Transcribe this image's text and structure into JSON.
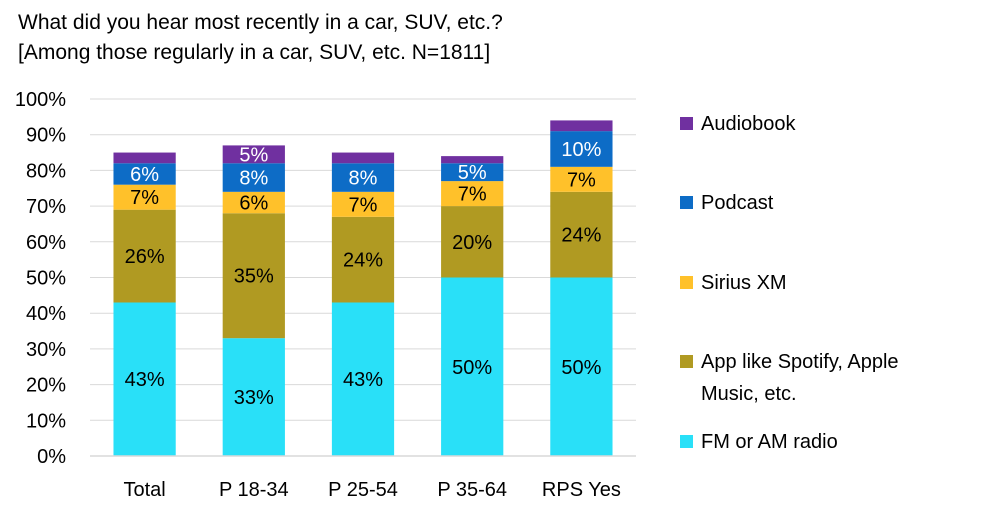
{
  "chart_data": {
    "type": "bar",
    "stacked": true,
    "title": "What did you hear most recently in a car, SUV, etc.?",
    "subtitle": "[Among those regularly in a car, SUV, etc. N=1811]",
    "categories": [
      "Total",
      "P 18-34",
      "P 25-54",
      "P 35-64",
      "RPS Yes"
    ],
    "ylim": [
      0,
      100
    ],
    "yticks": [
      "0%",
      "10%",
      "20%",
      "30%",
      "40%",
      "50%",
      "60%",
      "70%",
      "80%",
      "90%",
      "100%"
    ],
    "grid": true,
    "legend_position": "right",
    "series": [
      {
        "name": "FM or AM radio",
        "color": "#29e0f8",
        "values": [
          43,
          33,
          43,
          50,
          50
        ],
        "labels": [
          "43%",
          "33%",
          "43%",
          "50%",
          "50%"
        ],
        "label_color": "#000000"
      },
      {
        "name": "App like Spotify, Apple Music, etc.",
        "color": "#b09a22",
        "values": [
          26,
          35,
          24,
          20,
          24
        ],
        "labels": [
          "26%",
          "35%",
          "24%",
          "20%",
          "24%"
        ],
        "label_color": "#000000"
      },
      {
        "name": "Sirius XM",
        "color": "#ffc12a",
        "values": [
          7,
          6,
          7,
          7,
          7
        ],
        "labels": [
          "7%",
          "6%",
          "7%",
          "7%",
          "7%"
        ],
        "label_color": "#000000"
      },
      {
        "name": "Podcast",
        "color": "#0d6cc6",
        "values": [
          6,
          8,
          8,
          5,
          10
        ],
        "labels": [
          "6%",
          "8%",
          "8%",
          "5%",
          "10%"
        ],
        "label_color": "#ffffff"
      },
      {
        "name": "Audiobook",
        "color": "#7030a0",
        "values": [
          3,
          5,
          3,
          2,
          3
        ],
        "labels": [
          "",
          "5%",
          "",
          "",
          ""
        ],
        "label_color": "#ffffff"
      }
    ]
  }
}
